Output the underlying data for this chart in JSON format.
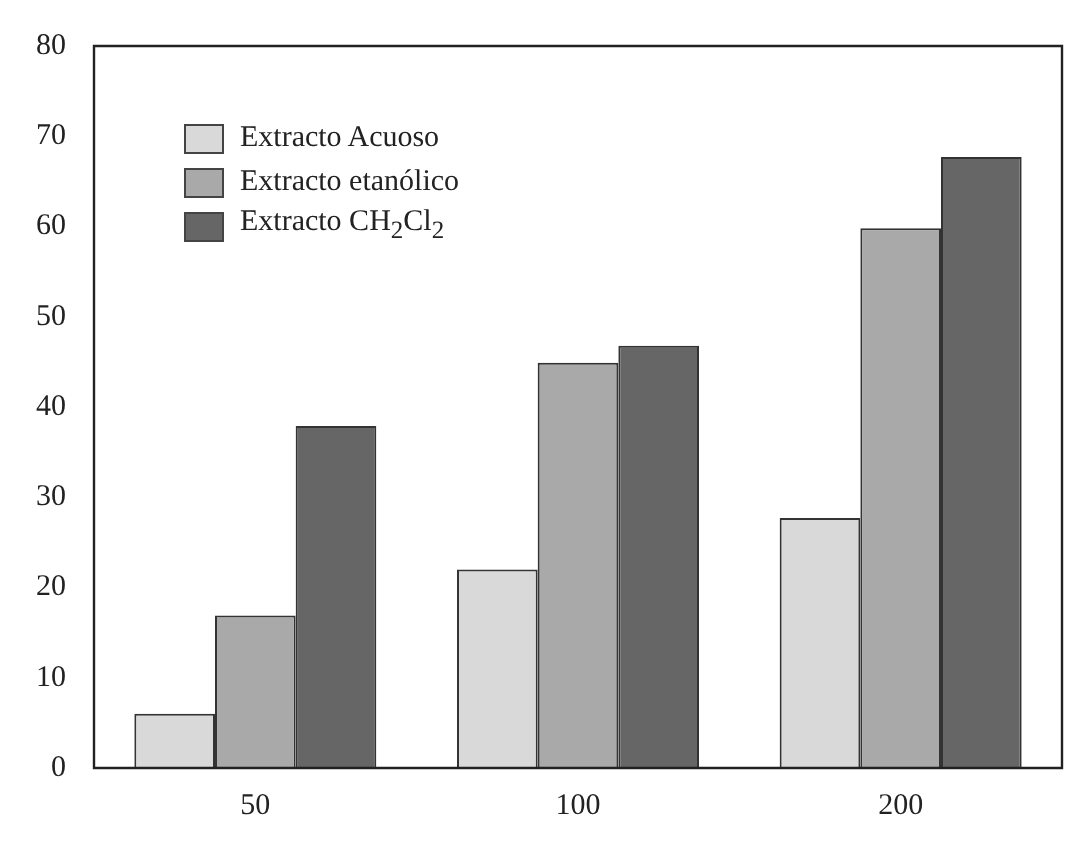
{
  "chart_data": {
    "type": "bar",
    "categories": [
      "50",
      "100",
      "200"
    ],
    "series": [
      {
        "name": "Extracto Acuoso",
        "color": "#d9d9d9",
        "values": [
          6,
          22,
          27.7
        ]
      },
      {
        "name": "Extracto etanólico",
        "color": "#a9a9a9",
        "values": [
          16.9,
          44.9,
          59.8
        ]
      },
      {
        "name": "Extracto CH$_{2}$Cl$_{2}$",
        "color": "#666666",
        "values": [
          37.9,
          46.8,
          67.7
        ]
      }
    ],
    "ylim": [
      0,
      80
    ],
    "yticks": [
      0,
      10,
      20,
      30,
      40,
      50,
      60,
      70,
      80
    ],
    "grid": false,
    "legend": "top left"
  }
}
